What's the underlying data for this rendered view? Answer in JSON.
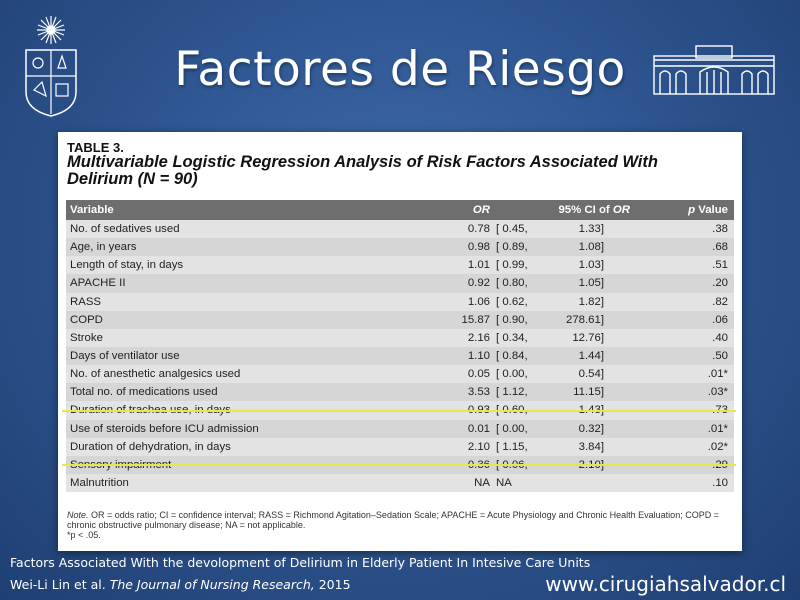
{
  "slide": {
    "title": "Factores de Riesgo",
    "caption_line1": "Factors Associated With the devolopment of Delirium in Elderly Patient In Intesive Care Units",
    "caption_authors": "Wei-Li Lin et al.",
    "caption_journal": "The Journal of Nursing Research,",
    "caption_year": "2015",
    "footer_url": "www.cirugiahsalvador.cl",
    "colors": {
      "background": "#2f5793",
      "highlight": "#e5e84a",
      "header_row": "#6e6e6e"
    },
    "icons": [
      "university-crest-icon",
      "hospital-building-icon"
    ]
  },
  "table": {
    "label": "TABLE 3.",
    "heading": "Multivariable Logistic Regression Analysis of Risk Factors Associated With Delirium (N = 90)",
    "columns": {
      "variable": "Variable",
      "or": "OR",
      "ci_prefix": "95% CI of",
      "ci_or": "OR",
      "p": "p Value"
    },
    "rows": [
      {
        "variable": "No. of sedatives used",
        "or": "0.78",
        "ci_low": "[ 0.45,",
        "ci_high": "1.33]",
        "p": ".38"
      },
      {
        "variable": "Age, in years",
        "or": "0.98",
        "ci_low": "[ 0.89,",
        "ci_high": "1.08]",
        "p": ".68"
      },
      {
        "variable": "Length of stay, in days",
        "or": "1.01",
        "ci_low": "[ 0.99,",
        "ci_high": "1.03]",
        "p": ".51"
      },
      {
        "variable": "APACHE II",
        "or": "0.92",
        "ci_low": "[ 0.80,",
        "ci_high": "1.05]",
        "p": ".20"
      },
      {
        "variable": "RASS",
        "or": "1.06",
        "ci_low": "[ 0.62,",
        "ci_high": "1.82]",
        "p": ".82"
      },
      {
        "variable": "COPD",
        "or": "15.87",
        "ci_low": "[ 0.90,",
        "ci_high": "278.61]",
        "p": ".06"
      },
      {
        "variable": "Stroke",
        "or": "2.16",
        "ci_low": "[ 0.34,",
        "ci_high": "12.76]",
        "p": ".40"
      },
      {
        "variable": "Days of ventilator use",
        "or": "1.10",
        "ci_low": "[ 0.84,",
        "ci_high": "1.44]",
        "p": ".50"
      },
      {
        "variable": "No. of anesthetic analgesics used",
        "or": "0.05",
        "ci_low": "[ 0.00,",
        "ci_high": "0.54]",
        "p": ".01*"
      },
      {
        "variable": "Total no. of medications used",
        "or": "3.53",
        "ci_low": "[ 1.12,",
        "ci_high": "11.15]",
        "p": ".03*"
      },
      {
        "variable": "Duration of trachea use, in days",
        "or": "0.93",
        "ci_low": "[ 0.60,",
        "ci_high": "1.43]",
        "p": ".73"
      },
      {
        "variable": "Use of steroids before ICU admission",
        "or": "0.01",
        "ci_low": "[ 0.00,",
        "ci_high": "0.32]",
        "p": ".01*"
      },
      {
        "variable": "Duration of dehydration, in days",
        "or": "2.10",
        "ci_low": "[ 1.15,",
        "ci_high": "3.84]",
        "p": ".02*"
      },
      {
        "variable": "Sensory impairment",
        "or": "0.36",
        "ci_low": "[ 0.06,",
        "ci_high": "2.10]",
        "p": ".29"
      },
      {
        "variable": "Malnutrition",
        "or": "NA",
        "ci_low": "NA",
        "ci_high": "",
        "p": ".10"
      }
    ],
    "note_label": "Note.",
    "note_text": "OR = odds ratio; CI = confidence interval; RASS = Richmond Agitation–Sedation Scale; APACHE = Acute Physiology and Chronic Health Evaluation; COPD = chronic obstructive pulmonary disease; NA = not applicable.",
    "footnote": "*p < .05."
  }
}
